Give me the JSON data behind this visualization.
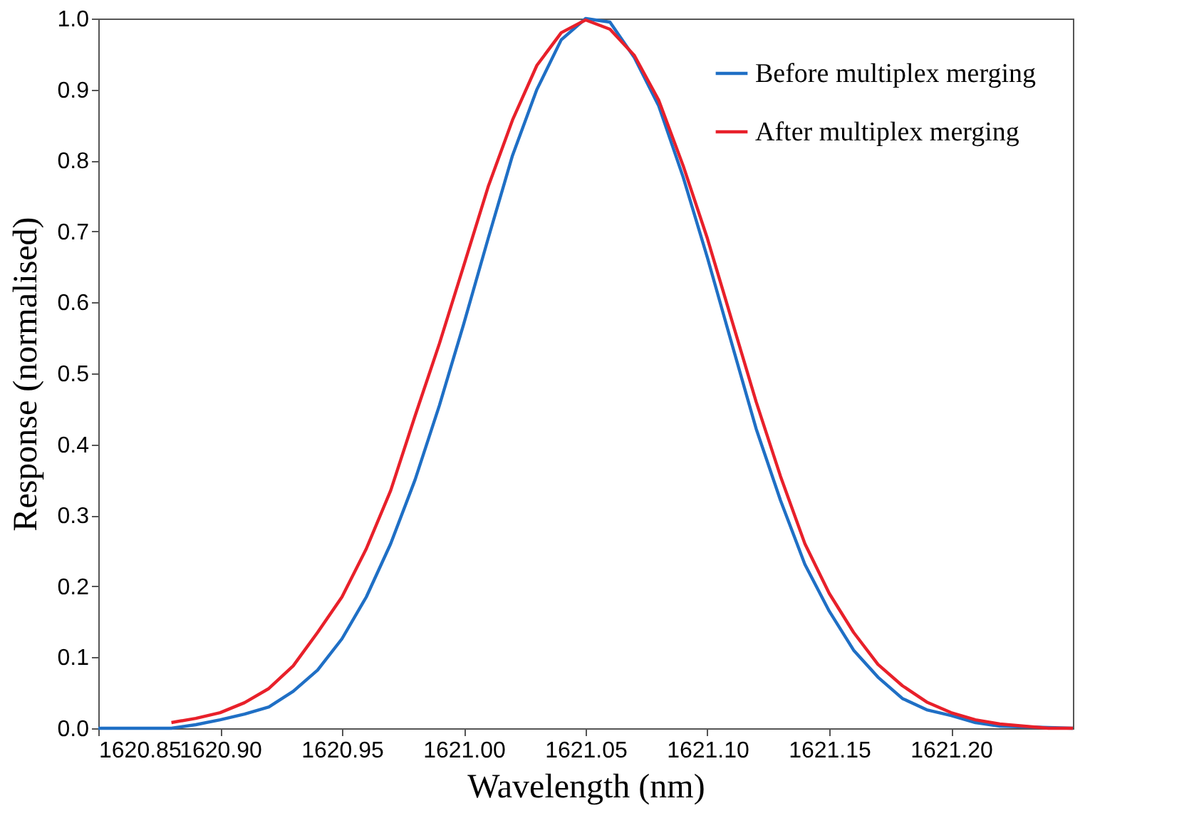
{
  "chart_data": {
    "type": "line",
    "xlabel": "Wavelength (nm)",
    "ylabel": "Response (normalised)",
    "xlim": [
      1620.85,
      1621.25
    ],
    "xticks": [
      1620.85,
      {
        "value": 1620.9,
        "label": "1620.90"
      },
      1620.95,
      {
        "value": 1621.0,
        "label": "1621.00"
      },
      1621.05,
      {
        "value": 1621.1,
        "label": "1621.10"
      },
      1621.15,
      {
        "value": 1621.2,
        "label": "1621.20"
      }
    ],
    "ylim": [
      0,
      1
    ],
    "yticks": [
      {
        "value": 0,
        "label": "0.0"
      },
      0.1,
      0.2,
      0.3,
      0.4,
      0.5,
      0.6,
      0.7,
      0.8,
      0.9,
      {
        "value": 1,
        "label": "1.0"
      }
    ],
    "grid": false,
    "legend": "top right",
    "marker": "none",
    "line_style": "solid",
    "series": [
      {
        "name": "Before multiplex merging",
        "color": "#1f6fc5",
        "x": [
          1620.85,
          1620.88,
          1620.89,
          1620.9,
          1620.91,
          1620.92,
          1620.93,
          1620.94,
          1620.95,
          1620.96,
          1620.97,
          1620.98,
          1620.99,
          1621.0,
          1621.01,
          1621.02,
          1621.03,
          1621.04,
          1621.05,
          1621.06,
          1621.07,
          1621.08,
          1621.09,
          1621.1,
          1621.11,
          1621.12,
          1621.13,
          1621.14,
          1621.15,
          1621.16,
          1621.17,
          1621.18,
          1621.19,
          1621.2,
          1621.21,
          1621.22,
          1621.25
        ],
        "values": [
          0,
          0,
          0.005,
          0.012,
          0.02,
          0.03,
          0.052,
          0.082,
          0.126,
          0.185,
          0.26,
          0.35,
          0.455,
          0.57,
          0.69,
          0.807,
          0.9,
          0.97,
          1.0,
          0.995,
          0.945,
          0.877,
          0.777,
          0.663,
          0.542,
          0.422,
          0.321,
          0.231,
          0.165,
          0.11,
          0.072,
          0.042,
          0.026,
          0.018,
          0.008,
          0.003,
          0
        ]
      },
      {
        "name": "After multiplex merging",
        "color": "#e8202a",
        "x": [
          1620.88,
          1620.89,
          1620.9,
          1620.91,
          1620.92,
          1620.93,
          1620.94,
          1620.95,
          1620.96,
          1620.97,
          1620.98,
          1620.99,
          1621.0,
          1621.01,
          1621.02,
          1621.03,
          1621.04,
          1621.05,
          1621.06,
          1621.07,
          1621.08,
          1621.09,
          1621.1,
          1621.11,
          1621.12,
          1621.13,
          1621.14,
          1621.15,
          1621.16,
          1621.17,
          1621.18,
          1621.19,
          1621.2,
          1621.21,
          1621.22,
          1621.23,
          1621.24,
          1621.25
        ],
        "values": [
          0.008,
          0.014,
          0.022,
          0.036,
          0.056,
          0.088,
          0.135,
          0.185,
          0.253,
          0.335,
          0.44,
          0.542,
          0.652,
          0.763,
          0.857,
          0.934,
          0.98,
          0.998,
          0.985,
          0.948,
          0.885,
          0.793,
          0.69,
          0.575,
          0.46,
          0.355,
          0.26,
          0.19,
          0.135,
          0.09,
          0.06,
          0.037,
          0.022,
          0.012,
          0.006,
          0.003,
          0,
          0
        ]
      }
    ]
  }
}
